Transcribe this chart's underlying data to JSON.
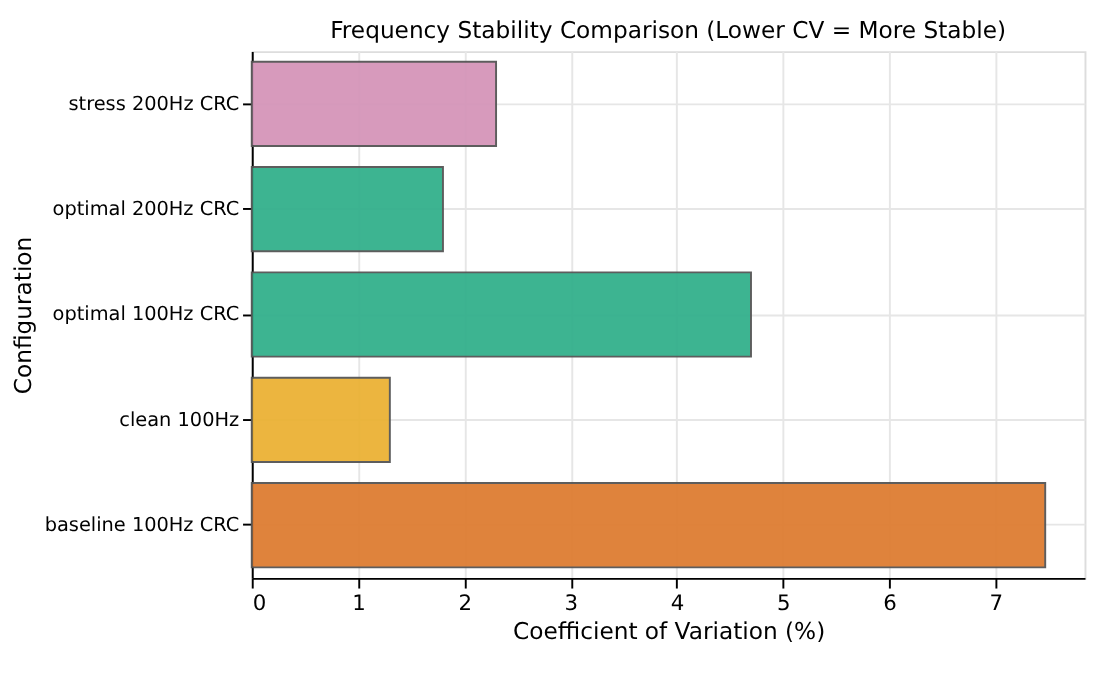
{
  "chart_data": {
    "type": "bar",
    "orientation": "horizontal",
    "title": "Frequency Stability Comparison (Lower CV = More Stable)",
    "xlabel": "Coefficient of Variation (%)",
    "ylabel": "Configuration",
    "categories": [
      "stress 200Hz CRC",
      "optimal 200Hz CRC",
      "optimal 100Hz CRC",
      "clean 100Hz",
      "baseline 100Hz CRC"
    ],
    "values": [
      2.3,
      1.8,
      4.7,
      1.3,
      7.47
    ],
    "colors": [
      "#d595b9",
      "#33b08c",
      "#33b08c",
      "#ebb235",
      "#de7d32"
    ],
    "xlim": [
      0,
      7.84
    ],
    "xticks": [
      0,
      1,
      2,
      3,
      4,
      5,
      6,
      7
    ],
    "grid": true
  }
}
